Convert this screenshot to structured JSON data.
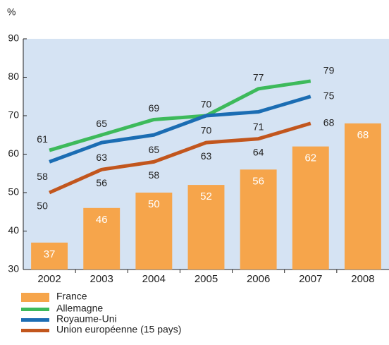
{
  "chart_data": {
    "type": "bar",
    "y_unit_label": "%",
    "categories": [
      "2002",
      "2003",
      "2004",
      "2005",
      "2006",
      "2007",
      "2008"
    ],
    "series": [
      {
        "name": "France",
        "type": "bar",
        "color": "#f6a54b",
        "values": [
          37,
          46,
          50,
          52,
          56,
          62,
          68
        ]
      },
      {
        "name": "Allemagne",
        "type": "line",
        "color": "#3dba5b",
        "values": [
          61,
          65,
          69,
          70,
          77,
          79,
          null
        ]
      },
      {
        "name": "Royaume-Uni",
        "type": "line",
        "color": "#1b6db3",
        "values": [
          58,
          63,
          65,
          70,
          71,
          75,
          null
        ]
      },
      {
        "name": "Union européenne (15 pays)",
        "type": "line",
        "color": "#c2561d",
        "values": [
          50,
          56,
          58,
          63,
          64,
          68,
          null
        ]
      }
    ],
    "ylim": [
      30,
      90
    ],
    "yticks": [
      30,
      40,
      50,
      60,
      70,
      80,
      90
    ],
    "grid": false,
    "background": "#d5e3f3"
  }
}
